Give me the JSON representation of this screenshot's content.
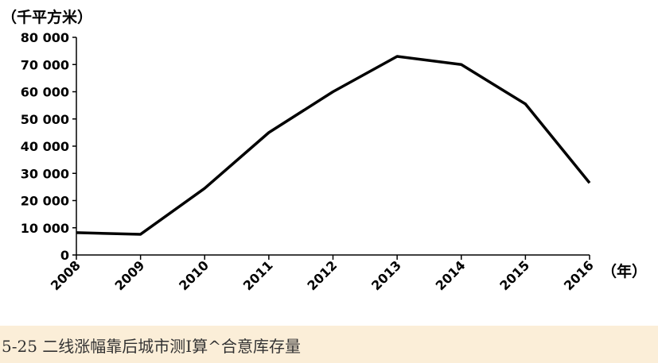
{
  "chart_data": {
    "type": "line",
    "ylabel": "（千平方米）",
    "xunit": "（年）",
    "x": [
      "2008",
      "2009",
      "2010",
      "2011",
      "2012",
      "2013",
      "2014",
      "2015",
      "2016"
    ],
    "series": [
      {
        "values": [
          8200,
          7600,
          24500,
          45000,
          60000,
          73000,
          70000,
          55500,
          26500
        ]
      }
    ],
    "yticks": [
      "0",
      "10 000",
      "20 000",
      "30 000",
      "40 000",
      "50 000",
      "60 000",
      "70 000",
      "80 000"
    ],
    "ylim": [
      0,
      80000
    ],
    "grid": false,
    "line_color": "#000000"
  },
  "caption": "5-25 二线涨幅靠后城市测I算^合意库存量"
}
